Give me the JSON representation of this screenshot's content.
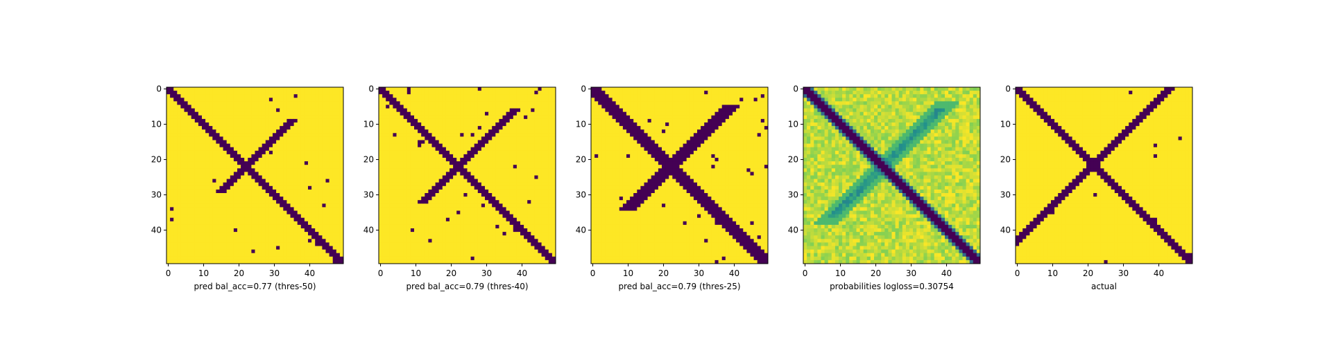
{
  "figure": {
    "colors": {
      "dark": "#440154",
      "mid": "#21918c",
      "light": "#fde725"
    }
  },
  "chart_data": [
    {
      "type": "heatmap",
      "xlabel": "pred bal_acc=0.77 (thres-50)",
      "grid_size": 50,
      "xlim": [
        0,
        49
      ],
      "ylim": [
        49,
        0
      ],
      "xticks": [
        0,
        10,
        20,
        30,
        40
      ],
      "yticks": [
        0,
        10,
        20,
        30,
        40
      ],
      "colormap": "viridis",
      "pattern": "diagonal band with short anti-diagonal arm",
      "values": "binary 0/1 prediction matrix"
    },
    {
      "type": "heatmap",
      "xlabel": "pred bal_acc=0.79 (thres-40)",
      "grid_size": 50,
      "xlim": [
        0,
        49
      ],
      "ylim": [
        49,
        0
      ],
      "xticks": [
        0,
        10,
        20,
        30,
        40
      ],
      "yticks": [
        0,
        10,
        20,
        30,
        40
      ],
      "colormap": "viridis",
      "pattern": "diagonal band with anti-diagonal arm",
      "values": "binary 0/1 prediction matrix"
    },
    {
      "type": "heatmap",
      "xlabel": "pred bal_acc=0.79 (thres-25)",
      "grid_size": 50,
      "xlim": [
        0,
        49
      ],
      "ylim": [
        49,
        0
      ],
      "xticks": [
        0,
        10,
        20,
        30,
        40
      ],
      "yticks": [
        0,
        10,
        20,
        30,
        40
      ],
      "colormap": "viridis",
      "pattern": "wider diagonal band with anti-diagonal arm",
      "values": "binary 0/1 prediction matrix"
    },
    {
      "type": "heatmap",
      "xlabel": "probabilities logloss=0.30754",
      "grid_size": 50,
      "xlim": [
        0,
        49
      ],
      "ylim": [
        49,
        0
      ],
      "xticks": [
        0,
        10,
        20,
        30,
        40
      ],
      "yticks": [
        0,
        10,
        20,
        30,
        40
      ],
      "colormap": "viridis",
      "pattern": "continuous probability map, dark diagonal, teal anti-diagonal",
      "values": "continuous 0–1 probability matrix"
    },
    {
      "type": "heatmap",
      "xlabel": "actual",
      "grid_size": 50,
      "xlim": [
        0,
        49
      ],
      "ylim": [
        49,
        0
      ],
      "xticks": [
        0,
        10,
        20,
        30,
        40
      ],
      "yticks": [
        0,
        10,
        20,
        30,
        40
      ],
      "colormap": "viridis",
      "pattern": "full X shape (diagonal + anti-diagonal)",
      "values": "binary 0/1 ground truth matrix"
    }
  ]
}
